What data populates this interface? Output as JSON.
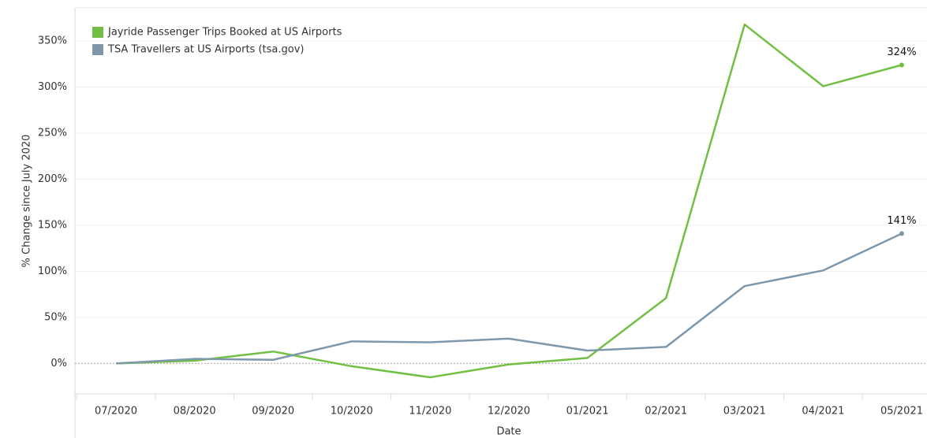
{
  "chart_data": {
    "type": "line",
    "x_label": "Date",
    "y_label": "% Change since July 2020",
    "categories": [
      "07/2020",
      "08/2020",
      "09/2020",
      "10/2020",
      "11/2020",
      "12/2020",
      "01/2021",
      "02/2021",
      "03/2021",
      "04/2021",
      "05/2021"
    ],
    "series": [
      {
        "name": "Jayride Passenger Trips Booked at US Airports",
        "color": "#72c043",
        "values": [
          0,
          3,
          13,
          -3,
          -15,
          -1,
          6,
          71,
          368,
          301,
          324
        ],
        "value_labels": [
          null,
          null,
          null,
          null,
          null,
          null,
          null,
          null,
          null,
          null,
          "324%"
        ]
      },
      {
        "name": "TSA Travellers at US Airports (tsa.gov)",
        "color": "#7f97ab",
        "values": [
          0,
          5,
          4,
          24,
          23,
          27,
          14,
          18,
          84,
          101,
          141
        ],
        "value_labels": [
          null,
          null,
          null,
          null,
          null,
          null,
          null,
          null,
          null,
          null,
          "141%"
        ]
      }
    ],
    "ylim": [
      -33,
      386
    ],
    "yticks": [
      {
        "value": 0,
        "label": "0%"
      },
      {
        "value": 50,
        "label": "50%"
      },
      {
        "value": 100,
        "label": "100%"
      },
      {
        "value": 150,
        "label": "150%"
      },
      {
        "value": 200,
        "label": "200%"
      },
      {
        "value": 250,
        "label": "250%"
      },
      {
        "value": 300,
        "label": "300%"
      },
      {
        "value": 350,
        "label": "350%"
      }
    ],
    "grid": true,
    "legend": "upper left"
  }
}
